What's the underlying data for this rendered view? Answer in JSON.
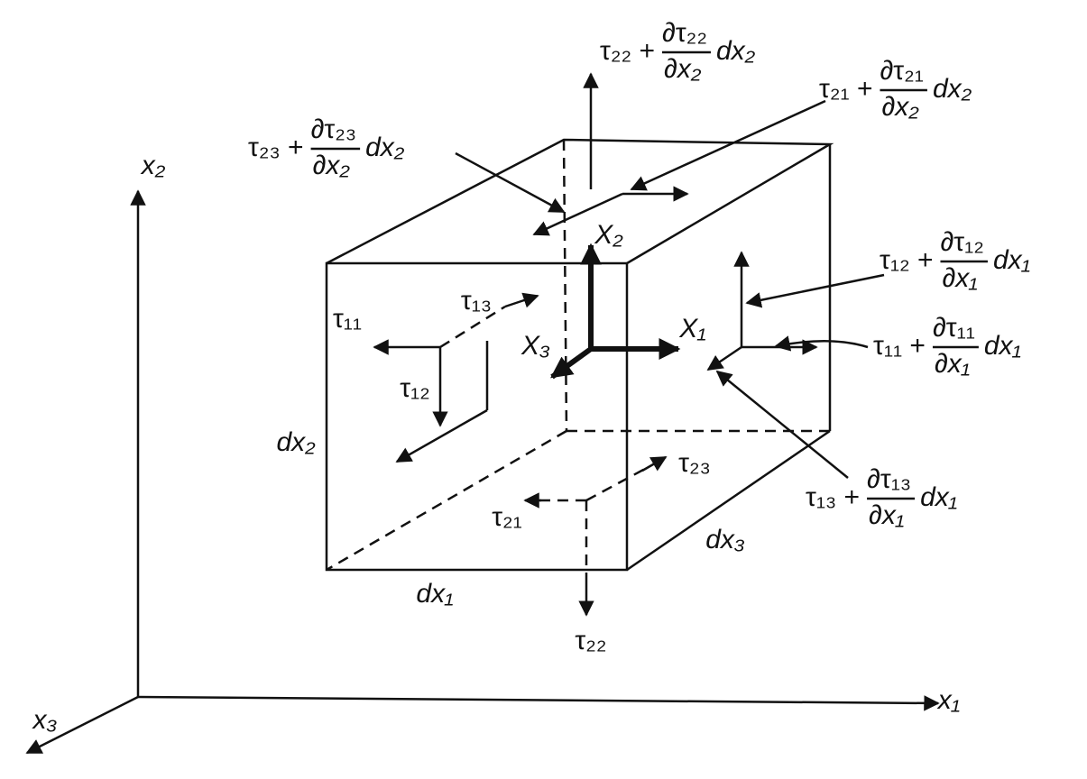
{
  "labels": {
    "x1": "x₁",
    "x2": "x₂",
    "x3": "x₃",
    "X1": "X₁",
    "X2": "X₂",
    "X3": "X₃",
    "t11": "τ₁₁",
    "t12": "τ₁₂",
    "t13": "τ₁₃",
    "t21": "τ₂₁",
    "t22": "τ₂₂",
    "t23": "τ₂₃",
    "dx1": "dx₁",
    "dx2": "dx₂",
    "dx3": "dx₃"
  },
  "expressions": [
    {
      "base": "τ₂₂ +",
      "numerator": "∂τ₂₂",
      "denominator": "∂x₂",
      "factor": "dx₂"
    },
    {
      "base": "τ₂₁ +",
      "numerator": "∂τ₂₁",
      "denominator": "∂x₂",
      "factor": "dx₂"
    },
    {
      "base": "τ₂₃ +",
      "numerator": "∂τ₂₃",
      "denominator": "∂x₂",
      "factor": "dx₂"
    },
    {
      "base": "τ₁₂ +",
      "numerator": "∂τ₁₂",
      "denominator": "∂x₁",
      "factor": "dx₁"
    },
    {
      "base": "τ₁₁ +",
      "numerator": "∂τ₁₁",
      "denominator": "∂x₁",
      "factor": "dx₁"
    },
    {
      "base": "τ₁₃ +",
      "numerator": "∂τ₁₃",
      "denominator": "∂x₁",
      "factor": "dx₁"
    }
  ]
}
